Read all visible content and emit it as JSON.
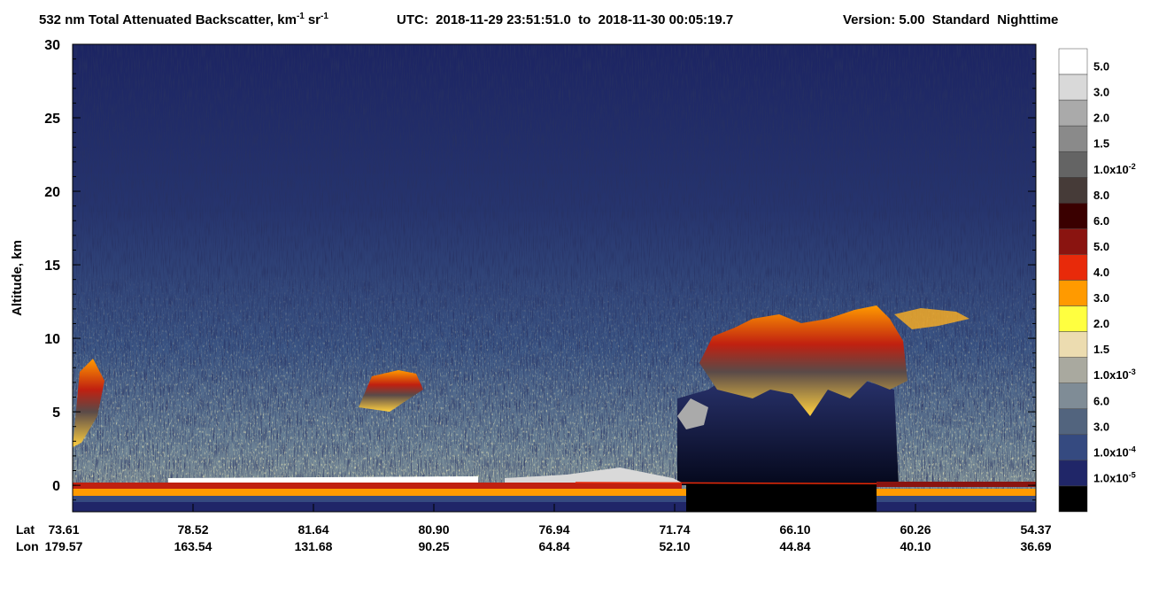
{
  "chart_data": {
    "type": "curtain",
    "title": {
      "text": "532 nm Total Attenuated Backscatter, km",
      "sup1": "-1",
      "mid": "sr",
      "sup2": "-1"
    },
    "utc": "UTC:  2018-11-29 23:51:51.0  to  2018-11-30 00:05:19.7",
    "version": "Version: 5.00  Standard  Nighttime",
    "ylabel": "Altitude, km",
    "ylim": [
      -1.8,
      30
    ],
    "yticks": [
      0,
      5,
      10,
      15,
      20,
      25,
      30
    ],
    "x_rows": {
      "lat_header": "Lat",
      "lon_header": "Lon",
      "lat": [
        "73.61",
        "78.52",
        "81.64",
        "80.90",
        "76.94",
        "71.74",
        "66.10",
        "60.26",
        "54.37"
      ],
      "lon": [
        "179.57",
        "163.54",
        "131.68",
        "90.25",
        "64.84",
        "52.10",
        "44.84",
        "40.10",
        "36.69"
      ]
    },
    "colorbar": {
      "colors": [
        "#ffffff",
        "#d9d9d9",
        "#aaaaaa",
        "#8a8a8a",
        "#646464",
        "#463b38",
        "#3a0000",
        "#8a1410",
        "#e82a0a",
        "#ff9a00",
        "#ffff40",
        "#ecdcb0",
        "#a9a99f",
        "#7f8c96",
        "#52647e",
        "#354a80",
        "#202668",
        "#000000"
      ],
      "labels": [
        "5.0",
        "3.0",
        "2.0",
        "1.5",
        {
          "base": "1.0x10",
          "exp": "-2"
        },
        "8.0",
        "6.0",
        "5.0",
        "4.0",
        "3.0",
        "2.0",
        "1.5",
        {
          "base": "1.0x10",
          "exp": "-3"
        },
        "6.0",
        "3.0",
        {
          "base": "1.0x10",
          "exp": "-4"
        },
        {
          "base": "1.0x10",
          "exp": "-5"
        }
      ]
    }
  }
}
